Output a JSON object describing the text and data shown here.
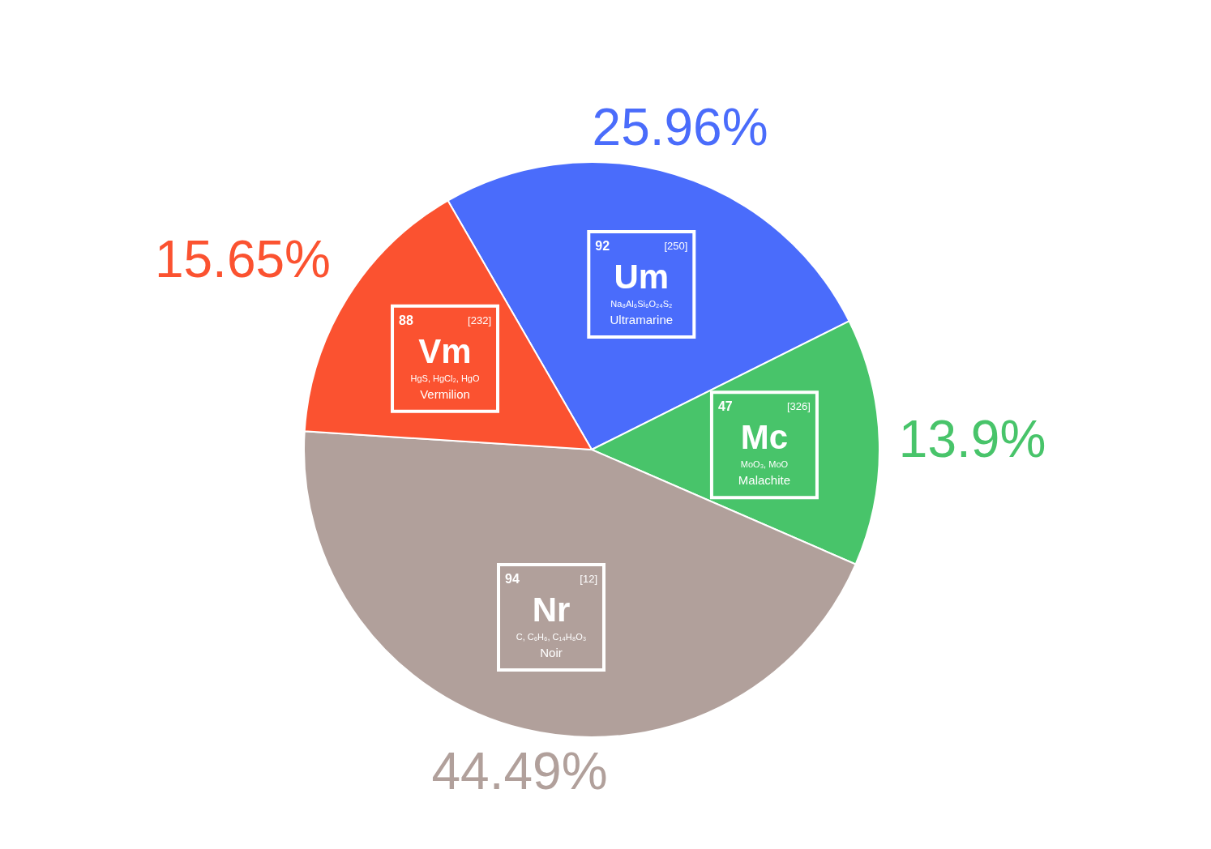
{
  "chart_data": {
    "type": "pie",
    "categories": [
      "Ultramarine",
      "Malachite",
      "Noir",
      "Vermilion"
    ],
    "values": [
      25.96,
      13.9,
      44.49,
      15.65
    ],
    "colors": [
      "#4a6cfb",
      "#48c46a",
      "#b1a09b",
      "#fb5230"
    ],
    "value_labels": [
      "25.96%",
      "13.9%",
      "44.49%",
      "15.65%"
    ],
    "annotations": [
      "92",
      "Um",
      "[250]",
      "Na₈Al₆Si₆O₂₄S₂",
      "47",
      "Mc",
      "[326]",
      "MoO₃, MoO",
      "94",
      "Nr",
      "[12]",
      "C, C₆H₆, C₁₄H₈O₃",
      "88",
      "Vm",
      "[232]",
      "HgS, HgCl₂, HgO"
    ],
    "legend": false
  }
}
